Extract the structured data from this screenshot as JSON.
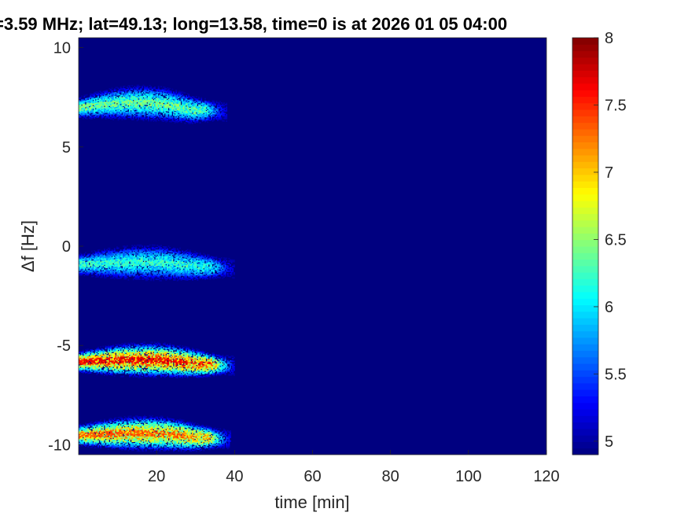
{
  "chart_data": {
    "type": "heatmap",
    "title": "=3.59 MHz;  lat=49.13; long=13.58, time=0 is at 2026 01 05 04:00",
    "xlabel": "time [min]",
    "ylabel": "Δf [Hz]",
    "xlim": [
      0,
      120
    ],
    "ylim": [
      -10.5,
      10.5
    ],
    "x_ticks": [
      20,
      40,
      60,
      80,
      100,
      120
    ],
    "y_ticks": [
      -10,
      -5,
      0,
      5,
      10
    ],
    "colorbar": {
      "colormap": "jet",
      "range": [
        4.9,
        8
      ],
      "ticks": [
        5,
        5.5,
        6,
        6.5,
        7,
        7.5,
        8
      ]
    },
    "background_value": 4.9,
    "grid": false,
    "bands": [
      {
        "center_hz": 7.0,
        "t_start": 0,
        "t_end": 38,
        "peak": 6.6
      },
      {
        "center_hz": -0.9,
        "t_start": 0,
        "t_end": 40,
        "peak": 6.4
      },
      {
        "center_hz": -5.8,
        "t_start": 0,
        "t_end": 40,
        "peak": 7.8
      },
      {
        "center_hz": -9.5,
        "t_start": 0,
        "t_end": 39,
        "peak": 7.5
      }
    ]
  },
  "colors": {
    "background": "#00008f",
    "axis_text": "#262626"
  }
}
